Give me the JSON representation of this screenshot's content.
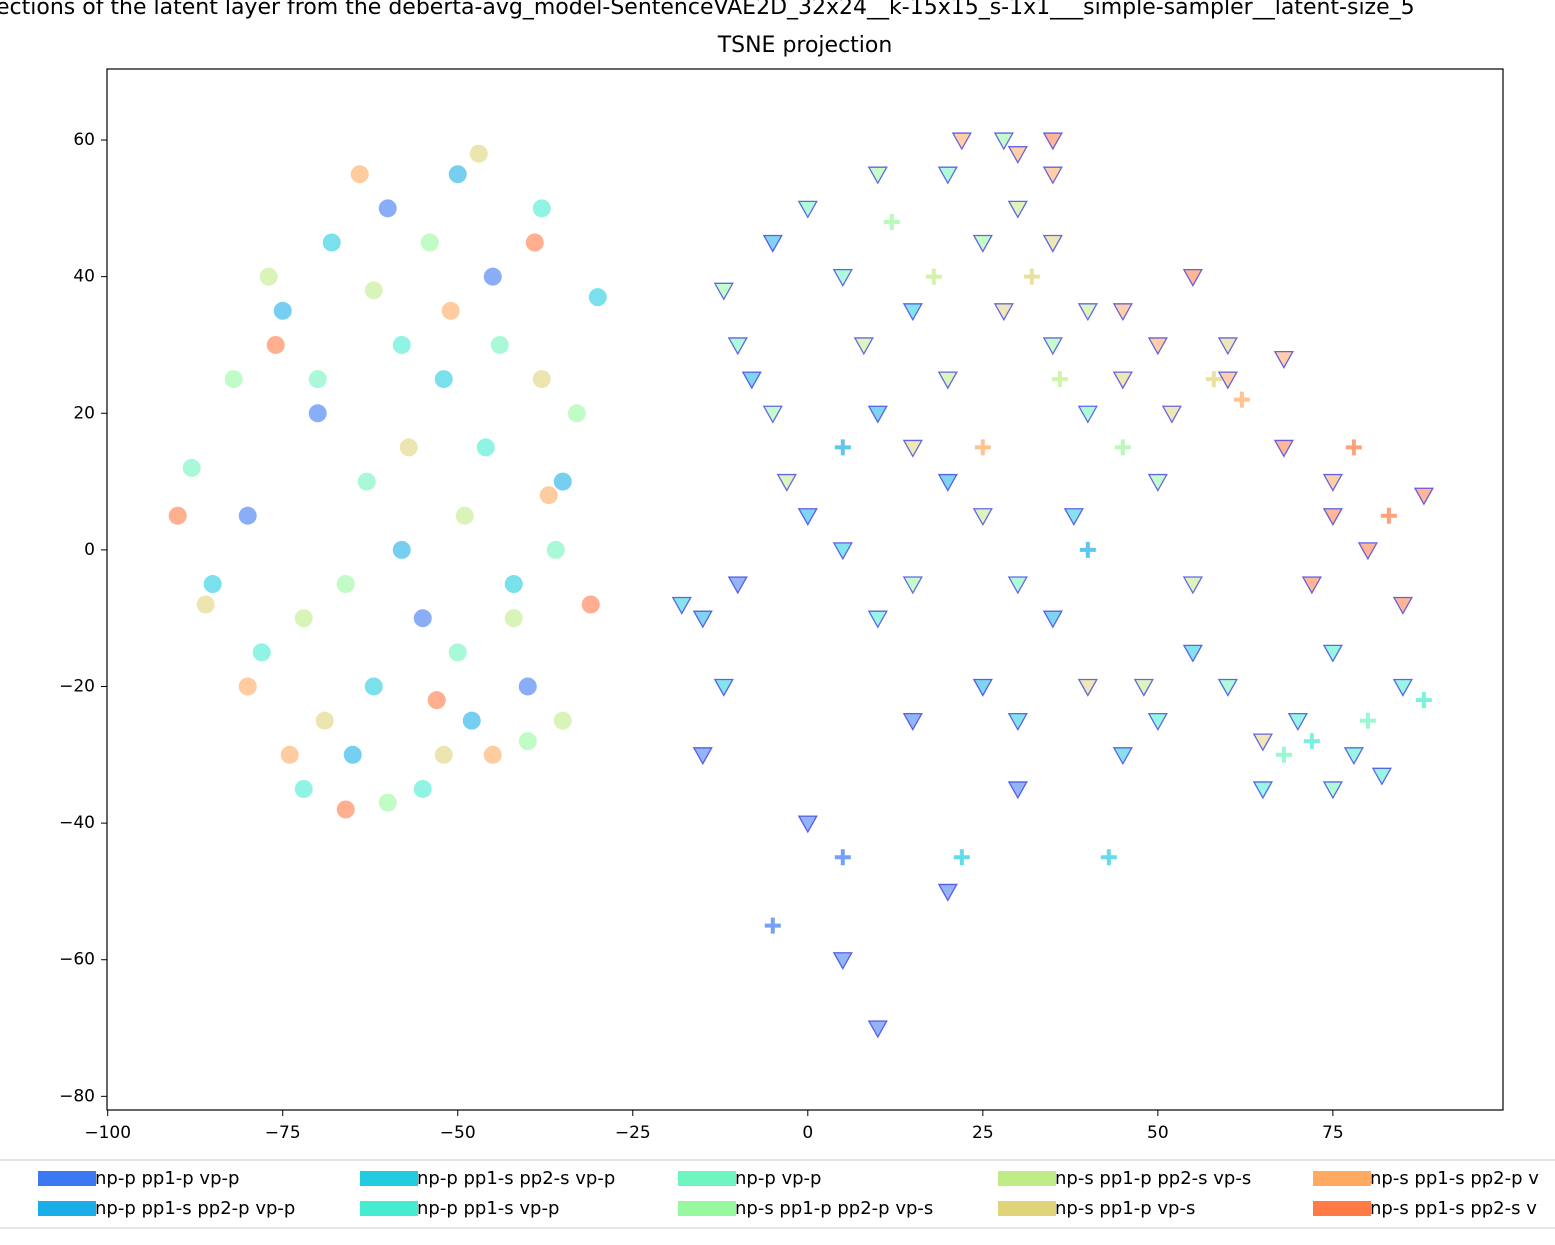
{
  "chart_data": {
    "type": "scatter",
    "title": "ections of the latent layer from the deberta-avg_model-SentenceVAE2D_32x24__k-15x15_s-1x1___simple-sampler__latent-size_5",
    "subtitle": "TSNE projection",
    "xlim": [
      -100.1,
      99.3
    ],
    "ylim": [
      -82,
      70.4
    ],
    "xticks": [
      {
        "value": -100,
        "label": "−100"
      },
      {
        "value": -75,
        "label": "−75"
      },
      {
        "value": -50,
        "label": "−50"
      },
      {
        "value": -25,
        "label": "−25"
      },
      0,
      25,
      50,
      75
    ],
    "yticks": [
      {
        "value": -80,
        "label": "−80"
      },
      {
        "value": -60,
        "label": "−60"
      },
      {
        "value": -40,
        "label": "−40"
      },
      {
        "value": -20,
        "label": "−20"
      },
      0,
      20,
      40,
      60
    ],
    "grid": false,
    "legend": "bottom",
    "series": [
      {
        "name": "np-p pp1-p vp-p",
        "color": "#3b78f2",
        "x": [
          -70,
          -55,
          -45,
          -80,
          -60,
          -40,
          5,
          -15,
          10,
          20,
          0,
          -10,
          15,
          30,
          5,
          -5
        ],
        "y": [
          20,
          -10,
          40,
          5,
          50,
          -20,
          -60,
          -30,
          -70,
          -50,
          -40,
          -5,
          -25,
          -35,
          -45,
          -55
        ],
        "markers": [
          "o",
          "o",
          "o",
          "o",
          "o",
          "o",
          "v",
          "v",
          "v",
          "v",
          "v",
          "v",
          "v",
          "v",
          "+",
          "+"
        ]
      },
      {
        "name": "np-p pp1-s pp2-p vp-p",
        "color": "#1aaee8",
        "x": [
          -65,
          -50,
          -35,
          -75,
          -58,
          -48,
          -5,
          10,
          25,
          -15,
          35,
          0,
          20,
          -8,
          5,
          40
        ],
        "y": [
          -30,
          55,
          10,
          35,
          0,
          -25,
          45,
          20,
          -20,
          -10,
          -10,
          5,
          10,
          25,
          15,
          0
        ],
        "markers": [
          "o",
          "o",
          "o",
          "o",
          "o",
          "o",
          "v",
          "v",
          "v",
          "v",
          "v",
          "v",
          "v",
          "v",
          "+",
          "+"
        ]
      },
      {
        "name": "np-p pp1-s pp2-s vp-p",
        "color": "#22cce0",
        "x": [
          -85,
          -52,
          -42,
          -68,
          -30,
          -62,
          -12,
          5,
          30,
          45,
          15,
          55,
          -18,
          38,
          22,
          43
        ],
        "y": [
          -5,
          25,
          -5,
          45,
          37,
          -20,
          -20,
          0,
          -25,
          -30,
          35,
          -15,
          -8,
          5,
          -45,
          -45
        ],
        "markers": [
          "o",
          "o",
          "o",
          "o",
          "o",
          "o",
          "v",
          "v",
          "v",
          "v",
          "v",
          "v",
          "v",
          "v",
          "+",
          "+"
        ]
      },
      {
        "name": "np-p pp1-s vp-p",
        "color": "#45ecd0",
        "x": [
          -78,
          -58,
          -46,
          -72,
          -38,
          -55,
          70,
          78,
          85,
          65,
          75,
          82,
          50,
          10,
          72,
          88
        ],
        "y": [
          -15,
          30,
          15,
          -35,
          50,
          -35,
          -25,
          -30,
          -20,
          -35,
          -15,
          -33,
          -25,
          -10,
          -28,
          -22
        ],
        "markers": [
          "o",
          "o",
          "o",
          "o",
          "o",
          "o",
          "v",
          "v",
          "v",
          "v",
          "v",
          "v",
          "v",
          "v",
          "+",
          "+"
        ]
      },
      {
        "name": "np-p vp-p",
        "color": "#6ff5c0",
        "x": [
          -88,
          -63,
          -50,
          -70,
          -44,
          -36,
          0,
          20,
          -10,
          40,
          60,
          75,
          30,
          5,
          68,
          80
        ],
        "y": [
          12,
          10,
          -15,
          25,
          30,
          0,
          50,
          55,
          30,
          20,
          -20,
          -35,
          -5,
          40,
          -30,
          -25
        ],
        "markers": [
          "o",
          "o",
          "o",
          "o",
          "o",
          "o",
          "v",
          "v",
          "v",
          "v",
          "v",
          "v",
          "v",
          "v",
          "+",
          "+"
        ]
      },
      {
        "name": "np-s pp1-p pp2-p vp-s",
        "color": "#98f8a0",
        "x": [
          -82,
          -66,
          -54,
          -40,
          -33,
          -60,
          25,
          10,
          -5,
          50,
          35,
          15,
          28,
          -12,
          45,
          12
        ],
        "y": [
          25,
          -5,
          45,
          -28,
          20,
          -37,
          45,
          55,
          20,
          10,
          30,
          -5,
          60,
          38,
          15,
          48
        ],
        "markers": [
          "o",
          "o",
          "o",
          "o",
          "o",
          "o",
          "v",
          "v",
          "v",
          "v",
          "v",
          "v",
          "v",
          "v",
          "+",
          "+"
        ]
      },
      {
        "name": "np-s pp1-p pp2-s vp-s",
        "color": "#c0ec88",
        "x": [
          -77,
          -62,
          -49,
          -42,
          -35,
          -72,
          30,
          40,
          20,
          55,
          8,
          48,
          25,
          -3,
          36,
          18
        ],
        "y": [
          40,
          38,
          5,
          -10,
          -25,
          -10,
          50,
          35,
          25,
          -5,
          30,
          -20,
          5,
          10,
          25,
          40
        ],
        "markers": [
          "o",
          "o",
          "o",
          "o",
          "o",
          "o",
          "v",
          "v",
          "v",
          "v",
          "v",
          "v",
          "v",
          "v",
          "+",
          "+"
        ]
      },
      {
        "name": "np-s pp1-p vp-s",
        "color": "#e0d47a",
        "x": [
          -86,
          -57,
          -47,
          -38,
          -69,
          -52,
          35,
          45,
          60,
          28,
          52,
          40,
          15,
          65,
          58,
          32
        ],
        "y": [
          -8,
          15,
          58,
          25,
          -25,
          -30,
          45,
          25,
          30,
          35,
          20,
          -20,
          15,
          -28,
          25,
          40
        ],
        "markers": [
          "o",
          "o",
          "o",
          "o",
          "o",
          "o",
          "v",
          "v",
          "v",
          "v",
          "v",
          "v",
          "v",
          "v",
          "+",
          "+"
        ]
      },
      {
        "name": "np-s pp1-s pp2-p v",
        "color": "#ffaa60",
        "x": [
          -80,
          -64,
          -51,
          -37,
          -74,
          -45,
          30,
          22,
          45,
          60,
          75,
          50,
          68,
          35,
          25,
          62
        ],
        "y": [
          -20,
          55,
          35,
          8,
          -30,
          -30,
          58,
          60,
          35,
          25,
          10,
          30,
          28,
          55,
          15,
          22
        ],
        "markers": [
          "o",
          "o",
          "o",
          "o",
          "o",
          "o",
          "v",
          "v",
          "v",
          "v",
          "v",
          "v",
          "v",
          "v",
          "+",
          "+"
        ]
      },
      {
        "name": "np-s pp1-s pp2-s v",
        "color": "#ff7a44",
        "x": [
          -90,
          -66,
          -53,
          -39,
          -31,
          -76,
          75,
          80,
          88,
          72,
          85,
          68,
          55,
          35,
          78,
          83
        ],
        "y": [
          5,
          -38,
          -22,
          45,
          -8,
          30,
          5,
          0,
          8,
          -5,
          -8,
          15,
          40,
          60,
          15,
          5
        ],
        "markers": [
          "o",
          "o",
          "o",
          "o",
          "o",
          "o",
          "v",
          "v",
          "v",
          "v",
          "v",
          "v",
          "v",
          "v",
          "+",
          "+"
        ]
      }
    ]
  }
}
